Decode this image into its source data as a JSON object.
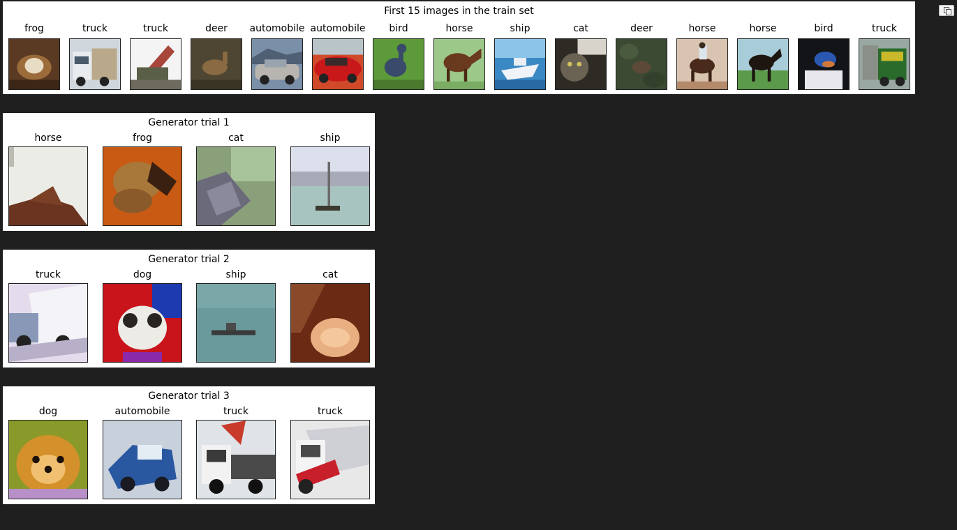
{
  "train_set": {
    "title": "First 15 images in the train set",
    "images": [
      {
        "label": "frog"
      },
      {
        "label": "truck"
      },
      {
        "label": "truck"
      },
      {
        "label": "deer"
      },
      {
        "label": "automobile"
      },
      {
        "label": "automobile"
      },
      {
        "label": "bird"
      },
      {
        "label": "horse"
      },
      {
        "label": "ship"
      },
      {
        "label": "cat"
      },
      {
        "label": "deer"
      },
      {
        "label": "horse"
      },
      {
        "label": "horse"
      },
      {
        "label": "bird"
      },
      {
        "label": "truck"
      }
    ]
  },
  "generator_trials": [
    {
      "title": "Generator trial 1",
      "images": [
        {
          "label": "horse"
        },
        {
          "label": "frog"
        },
        {
          "label": "cat"
        },
        {
          "label": "ship"
        }
      ]
    },
    {
      "title": "Generator trial 2",
      "images": [
        {
          "label": "truck"
        },
        {
          "label": "dog"
        },
        {
          "label": "ship"
        },
        {
          "label": "cat"
        }
      ]
    },
    {
      "title": "Generator trial 3",
      "images": [
        {
          "label": "dog"
        },
        {
          "label": "automobile"
        },
        {
          "label": "truck"
        },
        {
          "label": "truck"
        }
      ]
    }
  ],
  "colors": {
    "page_background": "#1f1f1f",
    "panel_background": "#ffffff"
  },
  "icons": {
    "copy_button": "copy-icon"
  }
}
